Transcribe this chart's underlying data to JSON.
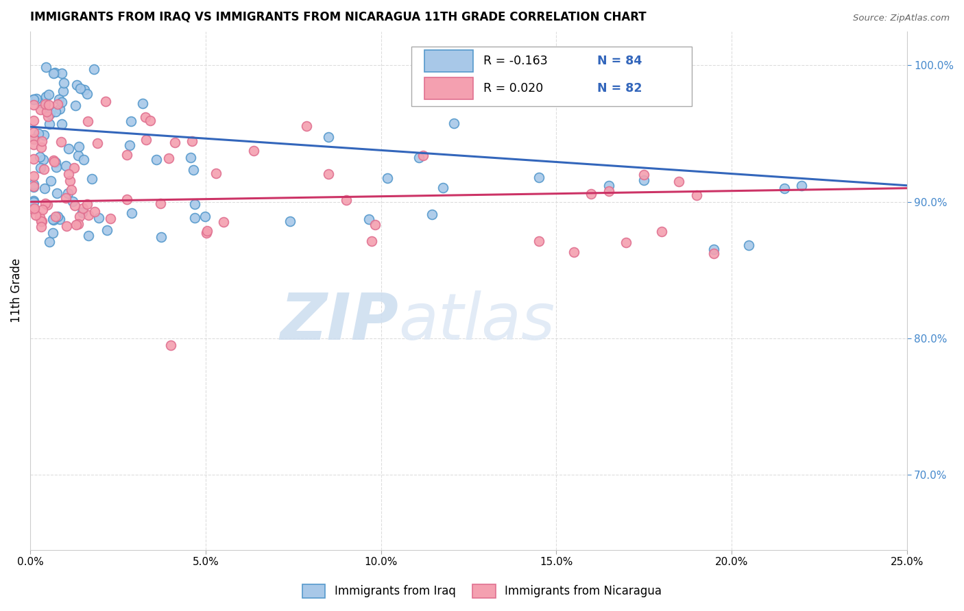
{
  "title": "IMMIGRANTS FROM IRAQ VS IMMIGRANTS FROM NICARAGUA 11TH GRADE CORRELATION CHART",
  "source": "Source: ZipAtlas.com",
  "ylabel": "11th Grade",
  "ylabel_right_ticks": [
    "70.0%",
    "80.0%",
    "90.0%",
    "100.0%"
  ],
  "ylabel_right_values": [
    0.7,
    0.8,
    0.9,
    1.0
  ],
  "legend_blue_r": "R = -0.163",
  "legend_blue_n": "N = 84",
  "legend_pink_r": "R = 0.020",
  "legend_pink_n": "N = 82",
  "legend_label_blue": "Immigrants from Iraq",
  "legend_label_pink": "Immigrants from Nicaragua",
  "watermark_zip": "ZIP",
  "watermark_atlas": "atlas",
  "xlim": [
    0.0,
    0.25
  ],
  "ylim": [
    0.645,
    1.025
  ],
  "blue_fill": "#a8c8e8",
  "blue_edge": "#5599cc",
  "pink_fill": "#f4a0b0",
  "pink_edge": "#e07090",
  "blue_line": "#3366bb",
  "pink_line": "#cc3366",
  "grid_color": "#dddddd",
  "xticks": [
    0.0,
    0.05,
    0.1,
    0.15,
    0.2,
    0.25
  ],
  "xtick_labels": [
    "0.0%",
    "5.0%",
    "10.0%",
    "15.0%",
    "20.0%",
    "25.0%"
  ],
  "blue_trend_x": [
    0.0,
    0.25
  ],
  "blue_trend_y": [
    0.955,
    0.912
  ],
  "pink_trend_x": [
    0.0,
    0.25
  ],
  "pink_trend_y": [
    0.9,
    0.91
  ]
}
